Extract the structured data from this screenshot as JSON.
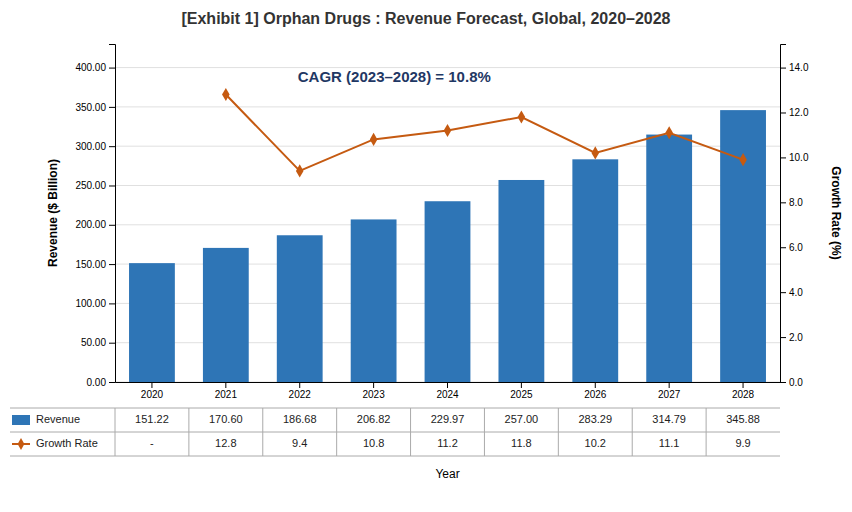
{
  "chart_data": {
    "type": "bar",
    "title": "[Exhibit 1] Orphan Drugs : Revenue Forecast, Global, 2020–2028",
    "xlabel": "Year",
    "ylabel": "Revenue ($ Billion)",
    "y2label": "Growth Rate (%)",
    "categories": [
      "2020",
      "2021",
      "2022",
      "2023",
      "2024",
      "2025",
      "2026",
      "2027",
      "2028"
    ],
    "series": [
      {
        "name": "Revenue",
        "type": "bar",
        "color": "#2e75b6",
        "values": [
          151.22,
          170.6,
          186.68,
          206.82,
          229.97,
          257.0,
          283.29,
          314.79,
          345.88
        ],
        "value_labels": [
          "151.22",
          "170.60",
          "186.68",
          "206.82",
          "229.97",
          "257.00",
          "283.29",
          "314.79",
          "345.88"
        ]
      },
      {
        "name": "Growth Rate",
        "type": "line",
        "axis": "y2",
        "color": "#c55a11",
        "marker": "diamond",
        "values": [
          null,
          12.8,
          9.4,
          10.8,
          11.2,
          11.8,
          10.2,
          11.1,
          9.9
        ],
        "value_labels": [
          "-",
          "12.8",
          "9.4",
          "10.8",
          "11.2",
          "11.8",
          "10.2",
          "11.1",
          "9.9"
        ]
      }
    ],
    "ylim": [
      0,
      430
    ],
    "yticks": [
      {
        "value": 0,
        "label": "0.00"
      },
      {
        "value": 50,
        "label": "50.00"
      },
      {
        "value": 100,
        "label": "100.00"
      },
      {
        "value": 150,
        "label": "150.00"
      },
      {
        "value": 200,
        "label": "200.00"
      },
      {
        "value": 250,
        "label": "250.00"
      },
      {
        "value": 300,
        "label": "300.00"
      },
      {
        "value": 350,
        "label": "350.00"
      },
      {
        "value": 400,
        "label": "400.00"
      }
    ],
    "y2lim": [
      0,
      15.05
    ],
    "y2ticks": [
      {
        "value": 0.0,
        "label": "0.0"
      },
      {
        "value": 2.0,
        "label": "2.0"
      },
      {
        "value": 4.0,
        "label": "4.0"
      },
      {
        "value": 6.0,
        "label": "6.0"
      },
      {
        "value": 8.0,
        "label": "8.0"
      },
      {
        "value": 10.0,
        "label": "10.0"
      },
      {
        "value": 12.0,
        "label": "12.0"
      },
      {
        "value": 14.0,
        "label": "14.0"
      }
    ],
    "grid": true,
    "legend": "bottom",
    "annotations": [
      {
        "text": "CAGR (2023–2028) = 10.8%",
        "color": "#1f3864"
      }
    ]
  }
}
